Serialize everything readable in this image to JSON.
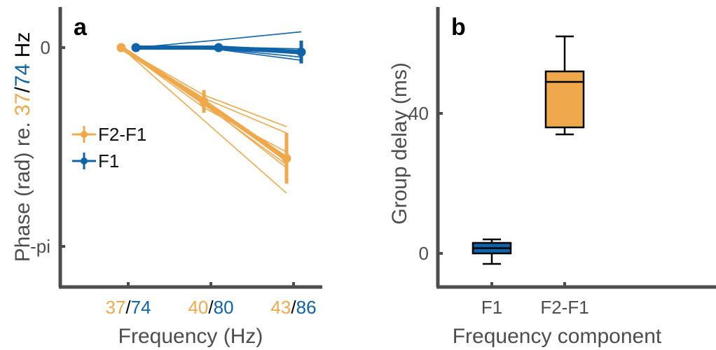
{
  "colors": {
    "f2f1": "#F0A94A",
    "f1": "#0F63A8",
    "axis": "#4d4d4d",
    "slash": "#000000"
  },
  "chart_data": [
    {
      "panel": "a",
      "type": "line",
      "panel_label": "a",
      "xlabel": "Frequency (Hz)",
      "ylabel_parts": [
        {
          "text": "Phase (rad) re. ",
          "color": "#4d4d4d"
        },
        {
          "text": "37",
          "color": "#F0A94A"
        },
        {
          "text": "/",
          "color": "#000000"
        },
        {
          "text": "74",
          "color": "#0F63A8"
        },
        {
          "text": " Hz",
          "color": "#000000"
        }
      ],
      "x_positions": [
        1,
        2,
        3
      ],
      "xlim": [
        0,
        3.5
      ],
      "x_tick_labels": [
        {
          "f2f1": "37",
          "sep": "/",
          "f1": "74"
        },
        {
          "f2f1": "40",
          "sep": "/",
          "f1": "80"
        },
        {
          "f2f1": "43",
          "sep": "/",
          "f1": "86"
        }
      ],
      "ylim": [
        -3.8,
        0.55
      ],
      "y_ticks": [
        {
          "value": 0,
          "label": "0"
        },
        {
          "value": -3.1416,
          "label": "-pi"
        }
      ],
      "legend": {
        "position": "center-left",
        "entries": [
          "F2-F1",
          "F1"
        ]
      },
      "series": [
        {
          "name": "F2-F1",
          "color_key": "f2f1",
          "x_offset": -0.18,
          "mean": [
            0,
            -0.85,
            -1.75
          ],
          "error": [
            0,
            0.18,
            0.4
          ],
          "individual": [
            [
              0,
              -0.75,
              -1.25
            ],
            [
              0,
              -0.8,
              -1.35
            ],
            [
              0,
              -0.95,
              -1.65
            ],
            [
              0,
              -0.85,
              -1.8
            ],
            [
              0,
              -0.9,
              -1.85
            ],
            [
              0,
              -0.88,
              -1.9
            ],
            [
              0,
              -1.15,
              -2.3
            ]
          ]
        },
        {
          "name": "F1",
          "color_key": "f1",
          "x_offset": 0,
          "mean": [
            0,
            0,
            -0.07
          ],
          "error": [
            0,
            0.03,
            0.18
          ],
          "individual": [
            [
              0,
              0.12,
              0.25
            ],
            [
              0,
              0.01,
              -0.02
            ],
            [
              0,
              0.0,
              -0.05
            ],
            [
              0,
              -0.01,
              -0.1
            ],
            [
              0,
              -0.02,
              -0.15
            ],
            [
              0,
              -0.03,
              -0.2
            ]
          ]
        }
      ]
    },
    {
      "panel": "b",
      "type": "box",
      "panel_label": "b",
      "xlabel": "Frequency component",
      "ylabel": "Group delay (ms)",
      "categories": [
        "F1",
        "F2-F1"
      ],
      "ylim": [
        -10,
        70
      ],
      "xlim": [
        0.3,
        4
      ],
      "y_ticks": [
        {
          "value": 0,
          "label": "0"
        },
        {
          "value": 40,
          "label": "40"
        }
      ],
      "boxes": [
        {
          "category": "F1",
          "color_key": "f1",
          "whisker_low": -3,
          "q1": 0,
          "median": 1.5,
          "q3": 3,
          "whisker_high": 4
        },
        {
          "category": "F2-F1",
          "color_key": "f2f1",
          "whisker_low": 34,
          "q1": 36,
          "median": 49,
          "q3": 52,
          "whisker_high": 62
        }
      ]
    }
  ]
}
